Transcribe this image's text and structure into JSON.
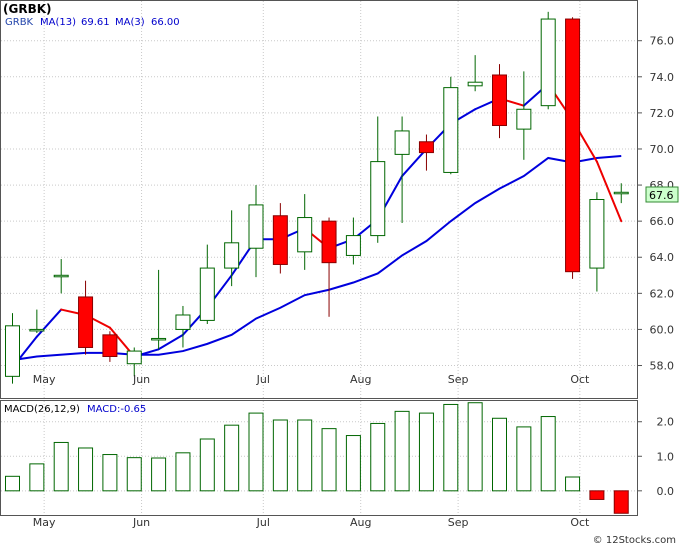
{
  "chart_data": {
    "type": "candlestick",
    "ticker": "(GRBK)",
    "legend": {
      "ma13_label": "MA(13)",
      "ma13_value": "69.61",
      "ma3_label": "MA(3)",
      "ma3_value": "66.00",
      "ma13_color": "#0000cc",
      "ma3_color": "#0000cc"
    },
    "last_price": "67.6",
    "up_color": "#006600",
    "down_color": "#ff0000",
    "ma13_color": "#0000dd",
    "ma3_up_color": "#0000dd",
    "ma3_down_color": "#ee0000",
    "ylim": [
      56.2,
      78.2
    ],
    "yticks": [
      58.0,
      60.0,
      62.0,
      64.0,
      66.0,
      68.0,
      70.0,
      72.0,
      74.0,
      76.0
    ],
    "month_labels": [
      {
        "label": "May",
        "index": 1.3
      },
      {
        "label": "Jun",
        "index": 5.3
      },
      {
        "label": "Jul",
        "index": 10.3
      },
      {
        "label": "Aug",
        "index": 14.3
      },
      {
        "label": "Sep",
        "index": 18.3
      },
      {
        "label": "Oct",
        "index": 23.3
      }
    ],
    "candles": [
      {
        "o": 57.4,
        "h": 60.9,
        "l": 57.0,
        "c": 60.2
      },
      {
        "o": 60.0,
        "h": 61.1,
        "l": 59.8,
        "c": 60.0
      },
      {
        "o": 63.0,
        "h": 63.9,
        "l": 62.0,
        "c": 63.0
      },
      {
        "o": 61.8,
        "h": 62.7,
        "l": 58.6,
        "c": 59.0
      },
      {
        "o": 59.7,
        "h": 59.9,
        "l": 58.2,
        "c": 58.5
      },
      {
        "o": 58.1,
        "h": 59.0,
        "l": 57.4,
        "c": 58.8
      },
      {
        "o": 59.5,
        "h": 63.3,
        "l": 58.9,
        "c": 59.5
      },
      {
        "o": 60.0,
        "h": 61.3,
        "l": 59.0,
        "c": 60.8
      },
      {
        "o": 60.5,
        "h": 64.7,
        "l": 60.3,
        "c": 63.4
      },
      {
        "o": 63.4,
        "h": 66.6,
        "l": 62.4,
        "c": 64.8
      },
      {
        "o": 64.5,
        "h": 68.0,
        "l": 62.9,
        "c": 66.9
      },
      {
        "o": 66.3,
        "h": 67.0,
        "l": 63.1,
        "c": 63.6
      },
      {
        "o": 64.3,
        "h": 67.5,
        "l": 63.3,
        "c": 66.2
      },
      {
        "o": 66.0,
        "h": 66.2,
        "l": 60.7,
        "c": 63.7
      },
      {
        "o": 64.1,
        "h": 66.2,
        "l": 63.6,
        "c": 65.2
      },
      {
        "o": 65.2,
        "h": 71.8,
        "l": 64.8,
        "c": 69.3
      },
      {
        "o": 69.7,
        "h": 71.8,
        "l": 65.9,
        "c": 71.0
      },
      {
        "o": 70.4,
        "h": 70.8,
        "l": 68.8,
        "c": 69.8
      },
      {
        "o": 68.7,
        "h": 74.0,
        "l": 68.6,
        "c": 73.4
      },
      {
        "o": 73.5,
        "h": 75.2,
        "l": 73.2,
        "c": 73.7
      },
      {
        "o": 74.1,
        "h": 74.7,
        "l": 70.6,
        "c": 71.3
      },
      {
        "o": 71.1,
        "h": 74.3,
        "l": 69.4,
        "c": 72.2
      },
      {
        "o": 72.4,
        "h": 77.6,
        "l": 72.2,
        "c": 77.2
      },
      {
        "o": 77.2,
        "h": 77.3,
        "l": 62.8,
        "c": 63.2
      },
      {
        "o": 63.4,
        "h": 67.6,
        "l": 62.1,
        "c": 67.2
      },
      {
        "o": 67.6,
        "h": 68.1,
        "l": 67.0,
        "c": 67.6
      }
    ],
    "ma13": [
      {
        "i": 0,
        "v": 58.3
      },
      {
        "i": 1,
        "v": 58.5
      },
      {
        "i": 3,
        "v": 58.7
      },
      {
        "i": 4,
        "v": 58.7
      },
      {
        "i": 5,
        "v": 58.6
      },
      {
        "i": 6,
        "v": 58.6
      },
      {
        "i": 7,
        "v": 58.8
      },
      {
        "i": 8,
        "v": 59.2
      },
      {
        "i": 9,
        "v": 59.7
      },
      {
        "i": 10,
        "v": 60.6
      },
      {
        "i": 11,
        "v": 61.2
      },
      {
        "i": 12,
        "v": 61.9
      },
      {
        "i": 13,
        "v": 62.2
      },
      {
        "i": 14,
        "v": 62.6
      },
      {
        "i": 15,
        "v": 63.1
      },
      {
        "i": 16,
        "v": 64.1
      },
      {
        "i": 17,
        "v": 64.9
      },
      {
        "i": 18,
        "v": 66.0
      },
      {
        "i": 19,
        "v": 67.0
      },
      {
        "i": 20,
        "v": 67.8
      },
      {
        "i": 21,
        "v": 68.5
      },
      {
        "i": 22,
        "v": 69.5
      },
      {
        "i": 23,
        "v": 69.25
      },
      {
        "i": 24,
        "v": 69.5
      },
      {
        "i": 25,
        "v": 69.61
      }
    ],
    "ma3": [
      {
        "i": 0,
        "v": 57.9
      },
      {
        "i": 1,
        "v": 59.6
      },
      {
        "i": 2,
        "v": 61.1
      },
      {
        "i": 3,
        "v": 60.8
      },
      {
        "i": 4,
        "v": 60.1
      },
      {
        "i": 5,
        "v": 58.5
      },
      {
        "i": 6,
        "v": 58.9
      },
      {
        "i": 7,
        "v": 59.7
      },
      {
        "i": 8,
        "v": 61.2
      },
      {
        "i": 9,
        "v": 63.0
      },
      {
        "i": 10,
        "v": 65.0
      },
      {
        "i": 11,
        "v": 65.0
      },
      {
        "i": 12,
        "v": 65.6
      },
      {
        "i": 13,
        "v": 64.5
      },
      {
        "i": 14,
        "v": 65.0
      },
      {
        "i": 15,
        "v": 66.1
      },
      {
        "i": 16,
        "v": 68.5
      },
      {
        "i": 17,
        "v": 70.0
      },
      {
        "i": 18,
        "v": 71.4
      },
      {
        "i": 19,
        "v": 72.2
      },
      {
        "i": 20,
        "v": 72.8
      },
      {
        "i": 21,
        "v": 72.4
      },
      {
        "i": 22,
        "v": 73.6
      },
      {
        "i": 23,
        "v": 71.6
      },
      {
        "i": 24,
        "v": 69.3
      },
      {
        "i": 25,
        "v": 66.0
      }
    ],
    "macd": {
      "label": "MACD(26,12,9)",
      "value_label": "MACD:-0.65",
      "ylim": [
        -0.7,
        2.6
      ],
      "yticks": [
        0.0,
        1.0,
        2.0
      ],
      "bar_color": "#006600",
      "neg_color": "#ff0000",
      "values": [
        0.42,
        0.78,
        1.4,
        1.24,
        1.05,
        0.96,
        0.95,
        1.1,
        1.5,
        1.9,
        2.25,
        2.05,
        2.05,
        1.8,
        1.6,
        1.95,
        2.3,
        2.25,
        2.5,
        2.55,
        2.1,
        1.85,
        2.15,
        0.4,
        -0.25,
        -0.65
      ]
    }
  },
  "footer": {
    "copyright": "© 12Stocks.com"
  }
}
